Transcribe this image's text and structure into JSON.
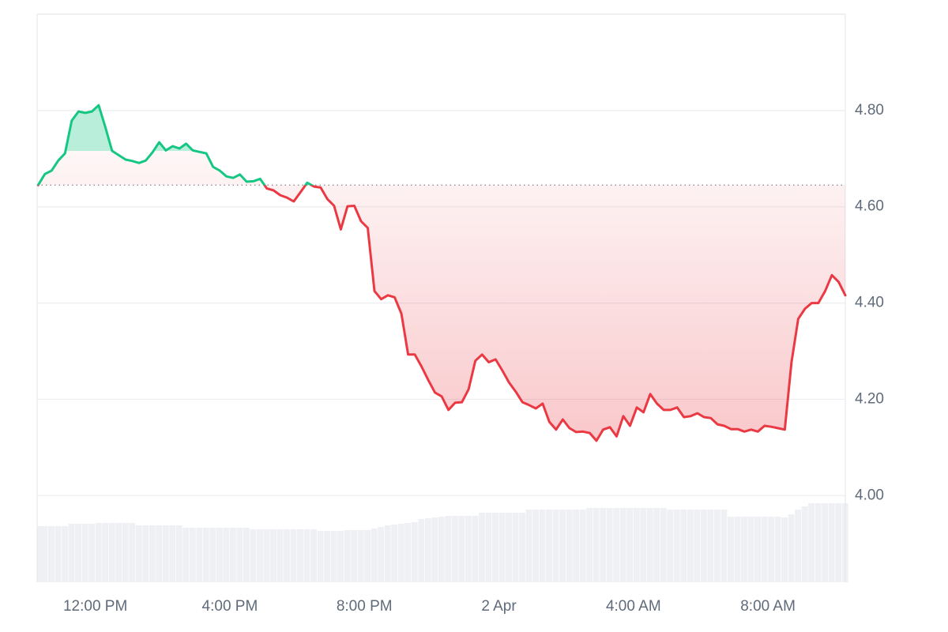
{
  "chart_data": {
    "type": "baseline-area",
    "x": [
      10.3,
      10.5,
      10.7,
      10.9,
      11.1,
      11.3,
      11.5,
      11.7,
      11.9,
      12.1,
      12.3,
      12.5,
      12.7,
      12.9,
      13.1,
      13.3,
      13.5,
      13.7,
      13.9,
      14.1,
      14.3,
      14.5,
      14.7,
      14.9,
      15.1,
      15.3,
      15.5,
      15.7,
      15.9,
      16.1,
      16.3,
      16.5,
      16.7,
      16.9,
      17.1,
      17.3,
      17.5,
      17.7,
      17.9,
      18.1,
      18.3,
      18.5,
      18.7,
      18.9,
      19.1,
      19.3,
      19.5,
      19.7,
      19.9,
      20.1,
      20.3,
      20.5,
      20.7,
      20.9,
      21.1,
      21.3,
      21.5,
      21.7,
      21.9,
      22.1,
      22.3,
      22.5,
      22.7,
      22.9,
      23.1,
      23.3,
      23.5,
      23.7,
      23.9,
      24.1,
      24.3,
      24.5,
      24.7,
      24.9,
      25.1,
      25.3,
      25.5,
      25.7,
      25.9,
      26.1,
      26.3,
      26.5,
      26.7,
      26.9,
      27.1,
      27.3,
      27.5,
      27.7,
      27.9,
      28.1,
      28.3,
      28.5,
      28.7,
      28.9,
      29.1,
      29.3,
      29.5,
      29.7,
      29.9,
      30.1,
      30.3,
      30.5,
      30.7,
      30.9,
      31.1,
      31.3,
      31.5,
      31.7,
      31.9,
      32.1,
      32.3,
      32.5,
      32.7,
      32.9,
      33.1,
      33.3,
      33.5,
      33.7,
      33.9,
      34.1,
      34.3
    ],
    "values": [
      4.645,
      4.668,
      4.675,
      4.696,
      4.711,
      4.779,
      4.798,
      4.795,
      4.798,
      4.811,
      4.765,
      4.716,
      4.707,
      4.698,
      4.695,
      4.691,
      4.696,
      4.713,
      4.734,
      4.717,
      4.726,
      4.721,
      4.731,
      4.717,
      4.714,
      4.711,
      4.683,
      4.675,
      4.663,
      4.66,
      4.667,
      4.652,
      4.653,
      4.658,
      4.638,
      4.634,
      4.624,
      4.619,
      4.611,
      4.63,
      4.65,
      4.642,
      4.64,
      4.616,
      4.602,
      4.553,
      4.601,
      4.602,
      4.57,
      4.556,
      4.425,
      4.408,
      4.416,
      4.412,
      4.378,
      4.293,
      4.293,
      4.268,
      4.24,
      4.214,
      4.206,
      4.178,
      4.193,
      4.194,
      4.221,
      4.28,
      4.293,
      4.277,
      4.283,
      4.26,
      4.235,
      4.216,
      4.194,
      4.188,
      4.181,
      4.191,
      4.153,
      4.137,
      4.158,
      4.14,
      4.132,
      4.133,
      4.13,
      4.114,
      4.137,
      4.142,
      4.123,
      4.165,
      4.145,
      4.183,
      4.173,
      4.211,
      4.191,
      4.178,
      4.178,
      4.183,
      4.163,
      4.165,
      4.171,
      4.163,
      4.161,
      4.148,
      4.145,
      4.138,
      4.138,
      4.133,
      4.137,
      4.133,
      4.145,
      4.143,
      4.14,
      4.137,
      4.277,
      4.367,
      4.388,
      4.4,
      4.4,
      4.425,
      4.458,
      4.444,
      4.416
    ],
    "volume": [
      71,
      71,
      71,
      71,
      71,
      74,
      74,
      74,
      74,
      75,
      75,
      75,
      75,
      75,
      75,
      72,
      72,
      72,
      72,
      72,
      72,
      72,
      69,
      69,
      69,
      69,
      69,
      69,
      69,
      69,
      69,
      69,
      67,
      67,
      67,
      67,
      67,
      67,
      67,
      67,
      67,
      67,
      65,
      65,
      65,
      65,
      66,
      66,
      66,
      66,
      68,
      70,
      72,
      73,
      74,
      75,
      76,
      80,
      81,
      82,
      83,
      84,
      84,
      84,
      84,
      84,
      88,
      88,
      88,
      88,
      88,
      88,
      88,
      92,
      92,
      92,
      92,
      92,
      92,
      92,
      92,
      92,
      94,
      94,
      94,
      94,
      94,
      94,
      94,
      94,
      94,
      94,
      94,
      94,
      92,
      92,
      92,
      92,
      92,
      92,
      92,
      92,
      92,
      83,
      83,
      83,
      83,
      83,
      83,
      83,
      83,
      82,
      86,
      92,
      96,
      100,
      100,
      100,
      100,
      100,
      100
    ],
    "baseline": 4.645,
    "xlim": [
      10.27,
      34.3
    ],
    "ylim": [
      3.82,
      5.0
    ],
    "vlim": [
      0,
      100
    ],
    "xticks": [
      {
        "value": 12,
        "label": "12:00 PM"
      },
      {
        "value": 16,
        "label": "4:00 PM"
      },
      {
        "value": 20,
        "label": "8:00 PM"
      },
      {
        "value": 24,
        "label": "2 Apr"
      },
      {
        "value": 28,
        "label": "4:00 AM"
      },
      {
        "value": 32,
        "label": "8:00 AM"
      }
    ],
    "yticks": [
      {
        "value": 4,
        "label": "4.00"
      },
      {
        "value": 4.2,
        "label": "4.20"
      },
      {
        "value": 4.4,
        "label": "4.40"
      },
      {
        "value": 4.6,
        "label": "4.60"
      },
      {
        "value": 4.8,
        "label": "4.80"
      }
    ],
    "up_color": "#16c784",
    "down_color": "#ea3943",
    "volume_color": "#eef0f4",
    "grid": true
  }
}
